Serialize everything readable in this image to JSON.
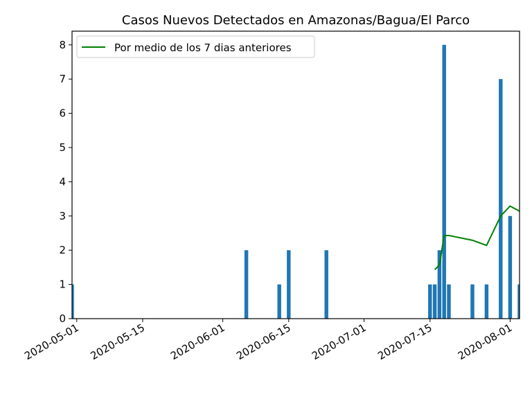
{
  "chart_data": {
    "type": "bar",
    "title": "Casos Nuevos Detectados en Amazonas/Bagua/El Parco",
    "xlabel": "",
    "ylabel": "",
    "x_axis": "date",
    "xlim": [
      "2020-04-30",
      "2020-08-03"
    ],
    "ylim": [
      0,
      8.4
    ],
    "x_ticks": [
      "2020-05-01",
      "2020-05-15",
      "2020-06-01",
      "2020-06-15",
      "2020-07-01",
      "2020-07-15",
      "2020-08-01"
    ],
    "y_ticks": [
      0,
      1,
      2,
      3,
      4,
      5,
      6,
      7,
      8
    ],
    "grid": false,
    "legend_position": "top-left",
    "bars": {
      "color": "#1f77b4",
      "x": [
        "2020-04-30",
        "2020-06-06",
        "2020-06-13",
        "2020-06-15",
        "2020-06-23",
        "2020-07-15",
        "2020-07-16",
        "2020-07-17",
        "2020-07-18",
        "2020-07-19",
        "2020-07-24",
        "2020-07-27",
        "2020-07-30",
        "2020-08-01",
        "2020-08-03"
      ],
      "values": [
        1,
        2,
        1,
        2,
        2,
        1,
        1,
        2,
        8,
        1,
        1,
        1,
        7,
        3,
        1
      ]
    },
    "series": [
      {
        "name": "Por medio de los 7 dias anteriores",
        "type": "line",
        "color": "#008000",
        "x": [
          "2020-07-16",
          "2020-07-17",
          "2020-07-18",
          "2020-07-19",
          "2020-07-24",
          "2020-07-27",
          "2020-07-30",
          "2020-08-01",
          "2020-08-03"
        ],
        "values": [
          1.43,
          1.57,
          2.43,
          2.43,
          2.29,
          2.14,
          3.0,
          3.29,
          3.14
        ]
      }
    ]
  }
}
